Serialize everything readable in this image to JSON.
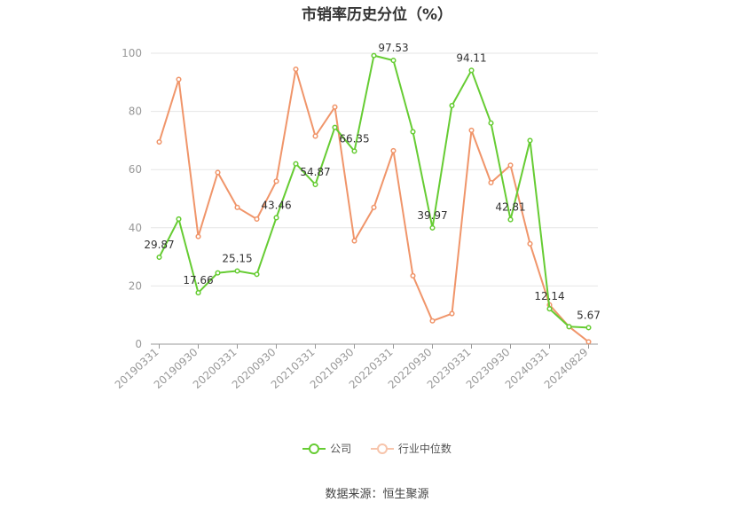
{
  "chart_data": {
    "type": "line",
    "title": "市销率历史分位（%）",
    "ylim": [
      0,
      100
    ],
    "yticks": [
      0,
      20,
      40,
      60,
      80,
      100
    ],
    "grid": true,
    "legend_position": "bottom",
    "xtick_labels": [
      "20190331",
      "20190930",
      "20200331",
      "20200930",
      "20210331",
      "20210930",
      "20220331",
      "20220930",
      "20230331",
      "20230930",
      "20240331",
      "20240829"
    ],
    "point_count": 23,
    "series": [
      {
        "name": "公司",
        "color": "#66cc33",
        "values": [
          29.87,
          43,
          17.66,
          24.5,
          25.15,
          24,
          43.46,
          62,
          54.87,
          74.5,
          66.35,
          99.2,
          97.53,
          73,
          39.97,
          82,
          94.11,
          76,
          42.81,
          70,
          12.14,
          6,
          5.67
        ]
      },
      {
        "name": "行业中位数",
        "color": "#f0956a",
        "values": [
          69.5,
          91,
          37,
          59,
          47,
          43,
          56,
          94.5,
          71.5,
          81.5,
          35.5,
          47,
          66.5,
          23.5,
          8,
          10.5,
          73.5,
          55.5,
          61.5,
          34.5,
          13.5,
          6,
          0.8
        ]
      }
    ],
    "data_labels": [
      {
        "series": 0,
        "index": 0,
        "text": "29.87"
      },
      {
        "series": 0,
        "index": 2,
        "text": "17.66"
      },
      {
        "series": 0,
        "index": 4,
        "text": "25.15"
      },
      {
        "series": 0,
        "index": 6,
        "text": "43.46"
      },
      {
        "series": 0,
        "index": 8,
        "text": "54.87"
      },
      {
        "series": 0,
        "index": 10,
        "text": "66.35"
      },
      {
        "series": 0,
        "index": 12,
        "text": "97.53"
      },
      {
        "series": 0,
        "index": 14,
        "text": "39.97"
      },
      {
        "series": 0,
        "index": 16,
        "text": "94.11"
      },
      {
        "series": 0,
        "index": 18,
        "text": "42.81"
      },
      {
        "series": 0,
        "index": 20,
        "text": "12.14"
      },
      {
        "series": 0,
        "index": 22,
        "text": "5.67"
      }
    ]
  },
  "source": "数据来源：恒生聚源"
}
